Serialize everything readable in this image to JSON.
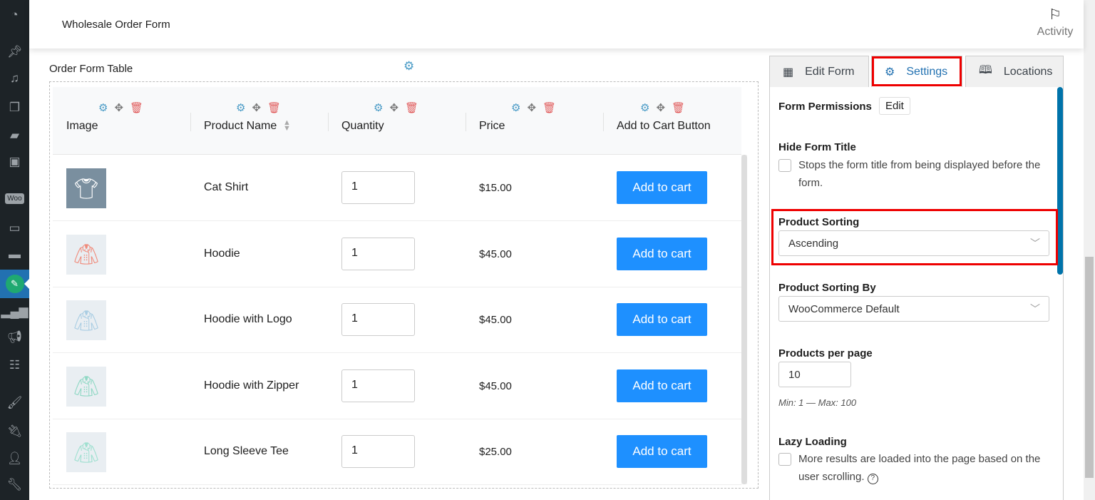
{
  "sidebar": {
    "items": [
      "dashboard-icon",
      "pin-icon",
      "media-icon",
      "pages-icon",
      "comments-icon",
      "plugin-robot-icon",
      "woo-icon",
      "archive-icon",
      "ticket-icon",
      "order-form-icon",
      "analytics-icon",
      "marketing-icon",
      "calendar-list-icon",
      "appearance-brush-icon",
      "plugins-icon",
      "users-icon",
      "tools-icon"
    ],
    "woo_label": "Woo"
  },
  "header": {
    "title": "Wholesale Order Form",
    "activity_label": "Activity"
  },
  "section": {
    "title": "Order Form Table"
  },
  "table": {
    "columns": [
      "Image",
      "Product Name",
      "Quantity",
      "Price",
      "Add to Cart Button"
    ],
    "rows": [
      {
        "name": "Cat Shirt",
        "qty": "1",
        "price": "$15.00",
        "button": "Add to cart",
        "image": "cat-shirt",
        "color": "#ffffff"
      },
      {
        "name": "Hoodie",
        "qty": "1",
        "price": "$45.00",
        "button": "Add to cart",
        "image": "hoodie",
        "color": "#f08a7a"
      },
      {
        "name": "Hoodie with Logo",
        "qty": "1",
        "price": "$45.00",
        "button": "Add to cart",
        "image": "hoodie-logo",
        "color": "#a9cde3"
      },
      {
        "name": "Hoodie with Zipper",
        "qty": "1",
        "price": "$45.00",
        "button": "Add to cart",
        "image": "hoodie-zipper",
        "color": "#8fd8c4"
      },
      {
        "name": "Long Sleeve Tee",
        "qty": "1",
        "price": "$25.00",
        "button": "Add to cart",
        "image": "long-sleeve-tee",
        "color": "#9fe0d0"
      }
    ]
  },
  "tabs": [
    {
      "label": "Edit Form"
    },
    {
      "label": "Settings",
      "active": true
    },
    {
      "label": "Locations"
    }
  ],
  "settings": {
    "form_permissions": "Form Permissions",
    "edit": "Edit",
    "hide_title": "Hide Form Title",
    "hide_title_desc": "Stops the form title from being displayed before the form.",
    "hide_title_checked": false,
    "sorting": "Product Sorting",
    "sorting_value": "Ascending",
    "sorting_by": "Product Sorting By",
    "sorting_by_value": "WooCommerce Default",
    "per_page": "Products per page",
    "per_page_value": "10",
    "per_page_hint": "Min: 1 — Max: 100",
    "lazy": "Lazy Loading",
    "lazy_desc": "More results are loaded into the page based on the user scrolling.",
    "lazy_checked": false
  },
  "colors": {
    "accent": "#2271b1",
    "button": "#1e90ff",
    "highlight": "#ee0000",
    "sidebar": "#1d2327"
  }
}
